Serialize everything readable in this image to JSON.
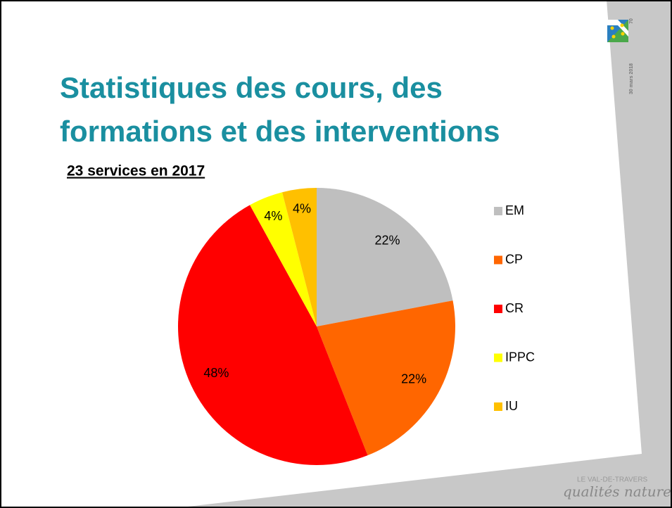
{
  "chart_data": {
    "type": "pie",
    "title": "Statistiques des cours, des formations et des interventions",
    "subtitle": "23 services en 2017",
    "categories": [
      "EM",
      "CP",
      "CR",
      "IPPC",
      "IU"
    ],
    "values": [
      22,
      22,
      48,
      4,
      4
    ],
    "value_labels": [
      "22%",
      "22%",
      "48%",
      "4%",
      "4%"
    ],
    "colors": [
      "#bfbfbf",
      "#ff6600",
      "#ff0000",
      "#ffff00",
      "#ffc000"
    ],
    "legend": "right"
  },
  "slide": {
    "number": "70",
    "date": "30 mars 2018",
    "logo_top": "LE VAL-DE-TRAVERS",
    "logo_bottom": "qualités naturelles"
  }
}
